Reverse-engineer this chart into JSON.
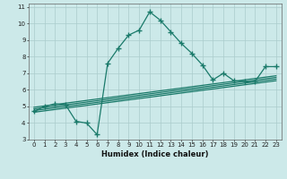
{
  "xlabel": "Humidex (Indice chaleur)",
  "ylabel": "",
  "background_color": "#cce9e9",
  "line_color": "#1a7a6a",
  "x_main": [
    0,
    1,
    2,
    3,
    4,
    5,
    6,
    7,
    8,
    9,
    10,
    11,
    12,
    13,
    14,
    15,
    16,
    17,
    18,
    19,
    20,
    21,
    22,
    23
  ],
  "y_main": [
    4.7,
    5.0,
    5.15,
    5.1,
    4.1,
    4.0,
    3.3,
    7.6,
    8.5,
    9.3,
    9.6,
    10.7,
    10.2,
    9.5,
    8.8,
    8.2,
    7.5,
    6.6,
    7.0,
    6.55,
    6.5,
    6.5,
    7.4,
    7.4
  ],
  "reg_lines": [
    {
      "x": [
        0,
        23
      ],
      "y": [
        4.65,
        6.55
      ]
    },
    {
      "x": [
        0,
        23
      ],
      "y": [
        4.75,
        6.65
      ]
    },
    {
      "x": [
        0,
        23
      ],
      "y": [
        4.85,
        6.75
      ]
    },
    {
      "x": [
        0,
        23
      ],
      "y": [
        4.95,
        6.85
      ]
    }
  ],
  "xlim": [
    -0.5,
    23.5
  ],
  "ylim": [
    3,
    11.2
  ],
  "yticks": [
    3,
    4,
    5,
    6,
    7,
    8,
    9,
    10,
    11
  ],
  "xticks": [
    0,
    1,
    2,
    3,
    4,
    5,
    6,
    7,
    8,
    9,
    10,
    11,
    12,
    13,
    14,
    15,
    16,
    17,
    18,
    19,
    20,
    21,
    22,
    23
  ],
  "grid_color": "#aacccc",
  "marker": "+",
  "markersize": 4,
  "linewidth": 0.9,
  "tick_fontsize": 5.0,
  "xlabel_fontsize": 6.0
}
